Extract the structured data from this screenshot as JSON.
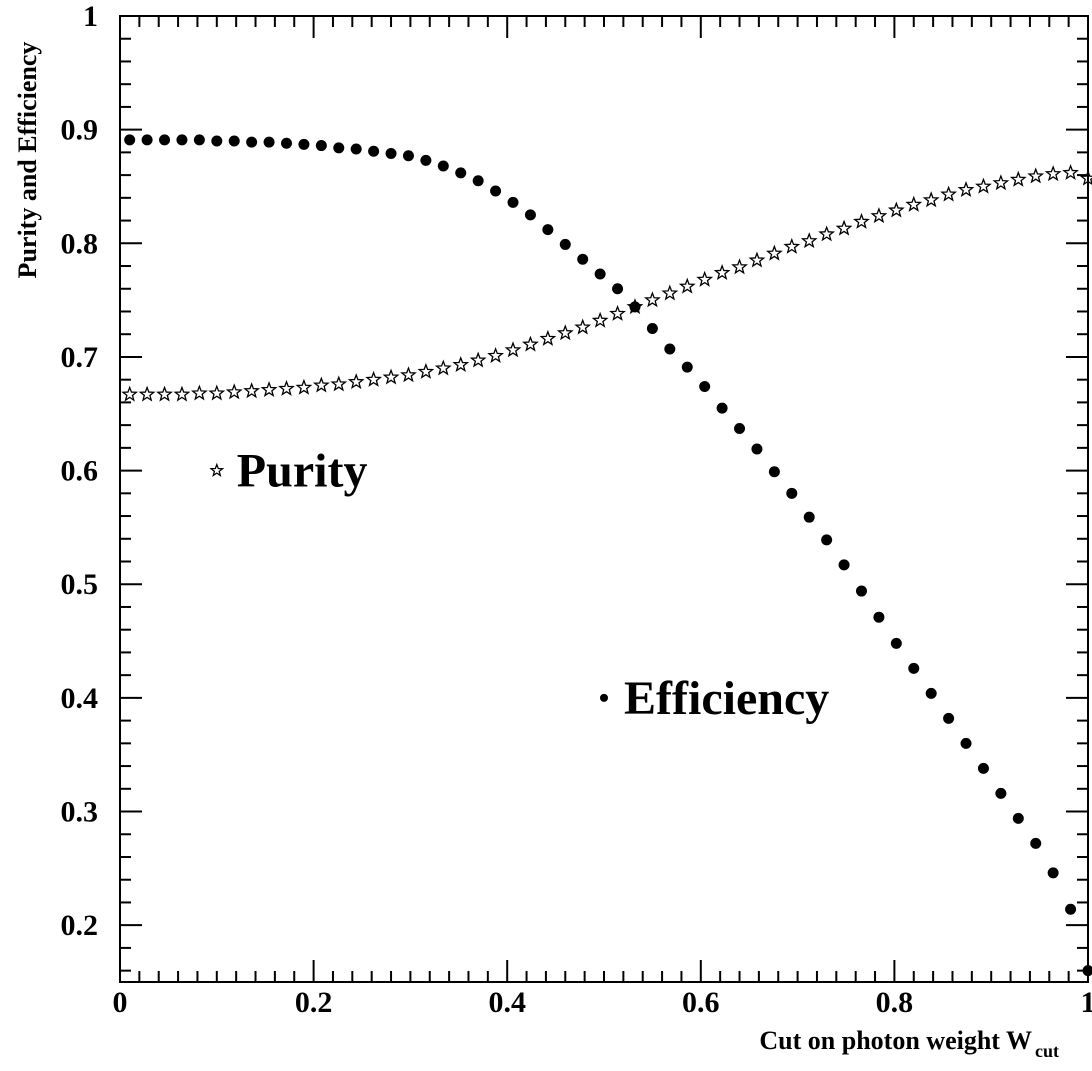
{
  "chart_data": {
    "type": "scatter",
    "title": "",
    "xlabel": "Cut on photon weight W",
    "xlabel_subscript": "cut",
    "ylabel": "Purity and Efficiency",
    "xlim": [
      0,
      1
    ],
    "ylim": [
      0.15,
      1
    ],
    "xticks": [
      "0",
      "0.2",
      "0.4",
      "0.6",
      "0.8",
      "1"
    ],
    "yticks": [
      "0.2",
      "0.3",
      "0.4",
      "0.5",
      "0.6",
      "0.7",
      "0.8",
      "0.9",
      "1"
    ],
    "grid": false,
    "series": [
      {
        "name": "Purity",
        "marker": "star",
        "x": [
          0.01,
          0.028,
          0.046,
          0.064,
          0.082,
          0.1,
          0.118,
          0.136,
          0.154,
          0.172,
          0.19,
          0.208,
          0.226,
          0.244,
          0.262,
          0.28,
          0.298,
          0.316,
          0.334,
          0.352,
          0.37,
          0.388,
          0.406,
          0.424,
          0.442,
          0.46,
          0.478,
          0.496,
          0.514,
          0.532,
          0.55,
          0.568,
          0.586,
          0.604,
          0.622,
          0.64,
          0.658,
          0.676,
          0.694,
          0.712,
          0.73,
          0.748,
          0.766,
          0.784,
          0.802,
          0.82,
          0.838,
          0.856,
          0.874,
          0.892,
          0.91,
          0.928,
          0.946,
          0.964,
          0.982,
          1.0
        ],
        "y": [
          0.667,
          0.667,
          0.667,
          0.667,
          0.668,
          0.668,
          0.669,
          0.67,
          0.671,
          0.672,
          0.673,
          0.675,
          0.676,
          0.678,
          0.68,
          0.682,
          0.684,
          0.687,
          0.69,
          0.693,
          0.697,
          0.701,
          0.706,
          0.711,
          0.716,
          0.721,
          0.726,
          0.732,
          0.738,
          0.744,
          0.75,
          0.756,
          0.762,
          0.768,
          0.774,
          0.779,
          0.785,
          0.791,
          0.797,
          0.802,
          0.808,
          0.813,
          0.819,
          0.824,
          0.829,
          0.834,
          0.838,
          0.843,
          0.847,
          0.85,
          0.853,
          0.856,
          0.859,
          0.861,
          0.862,
          0.857
        ]
      },
      {
        "name": "Efficiency",
        "marker": "dot",
        "x": [
          0.01,
          0.028,
          0.046,
          0.064,
          0.082,
          0.1,
          0.118,
          0.136,
          0.154,
          0.172,
          0.19,
          0.208,
          0.226,
          0.244,
          0.262,
          0.28,
          0.298,
          0.316,
          0.334,
          0.352,
          0.37,
          0.388,
          0.406,
          0.424,
          0.442,
          0.46,
          0.478,
          0.496,
          0.514,
          0.532,
          0.55,
          0.568,
          0.586,
          0.604,
          0.622,
          0.64,
          0.658,
          0.676,
          0.694,
          0.712,
          0.73,
          0.748,
          0.766,
          0.784,
          0.802,
          0.82,
          0.838,
          0.856,
          0.874,
          0.892,
          0.91,
          0.928,
          0.946,
          0.964,
          0.982,
          1.0
        ],
        "y": [
          0.891,
          0.891,
          0.891,
          0.891,
          0.891,
          0.89,
          0.89,
          0.889,
          0.889,
          0.888,
          0.887,
          0.886,
          0.884,
          0.883,
          0.881,
          0.879,
          0.877,
          0.873,
          0.868,
          0.862,
          0.855,
          0.846,
          0.836,
          0.825,
          0.812,
          0.799,
          0.786,
          0.773,
          0.76,
          0.744,
          0.725,
          0.707,
          0.691,
          0.674,
          0.655,
          0.637,
          0.619,
          0.599,
          0.58,
          0.559,
          0.539,
          0.517,
          0.494,
          0.471,
          0.448,
          0.426,
          0.404,
          0.382,
          0.36,
          0.338,
          0.316,
          0.294,
          0.272,
          0.246,
          0.214,
          0.16
        ]
      }
    ],
    "legend": [
      {
        "label": "Purity",
        "marker": "star",
        "x": 0.1,
        "y": 0.6
      },
      {
        "label": "Efficiency",
        "marker": "dot",
        "x": 0.5,
        "y": 0.4
      }
    ],
    "legend_placement": "inside plot"
  }
}
